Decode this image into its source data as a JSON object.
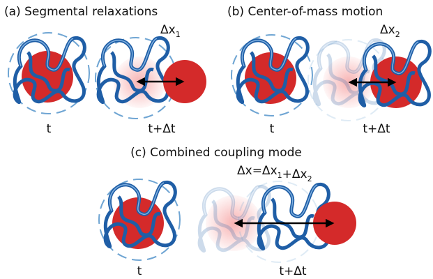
{
  "panels": [
    {
      "title": "(a) Segmental relaxations",
      "before": "t",
      "after": "t+Δt",
      "displacement": [
        {
          "text": "Δx",
          "sub": "1"
        }
      ]
    },
    {
      "title": "(b) Center-of-mass motion",
      "before": "t",
      "after": "t+Δt",
      "displacement": [
        {
          "text": "Δx",
          "sub": "2"
        }
      ]
    },
    {
      "title": "(c) Combined coupling mode",
      "before": "t",
      "after": "t+Δt",
      "displacement": [
        {
          "text": "Δx=Δx",
          "sub": "1"
        },
        {
          "text": "+Δx",
          "sub": "2"
        }
      ]
    }
  ]
}
